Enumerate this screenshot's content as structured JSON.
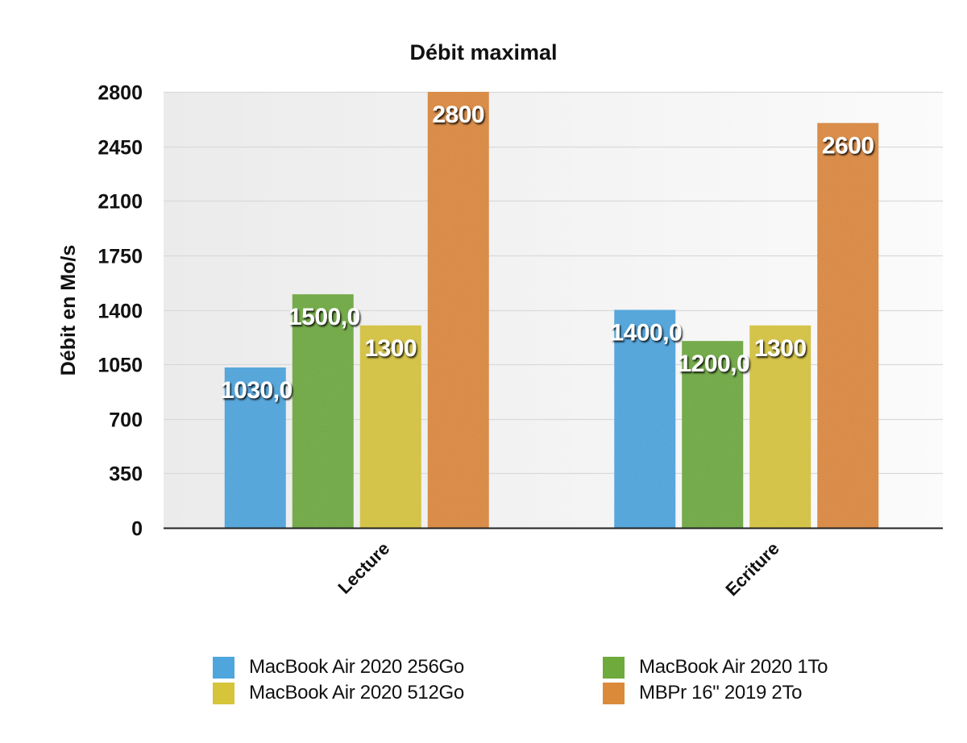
{
  "chart_data": {
    "type": "bar",
    "title": "Débit maximal",
    "xlabel": "",
    "ylabel": "Débit en Mo/s",
    "ylim": [
      0,
      2800
    ],
    "yticks": [
      0,
      350,
      700,
      1050,
      1400,
      1750,
      2100,
      2450,
      2800
    ],
    "grid": true,
    "legend_position": "bottom",
    "categories": [
      "Lecture",
      "Ecriture"
    ],
    "series": [
      {
        "name": "MacBook Air 2020 256Go",
        "color": "#4ea6dd",
        "values": [
          1030,
          1400
        ],
        "labels": [
          "1030,0",
          "1400,0"
        ]
      },
      {
        "name": "MacBook Air 2020 1To",
        "color": "#6faa3c",
        "values": [
          1500,
          1200
        ],
        "labels": [
          "1500,0",
          "1200,0"
        ]
      },
      {
        "name": "MacBook Air 2020 512Go",
        "color": "#d6c43a",
        "values": [
          1300,
          1300
        ],
        "labels": [
          "1300",
          "1300"
        ]
      },
      {
        "name": "MBPr 16\" 2019 2To",
        "color": "#db8a3a",
        "values": [
          2800,
          2600
        ],
        "labels": [
          "2800",
          "2600"
        ]
      }
    ]
  }
}
